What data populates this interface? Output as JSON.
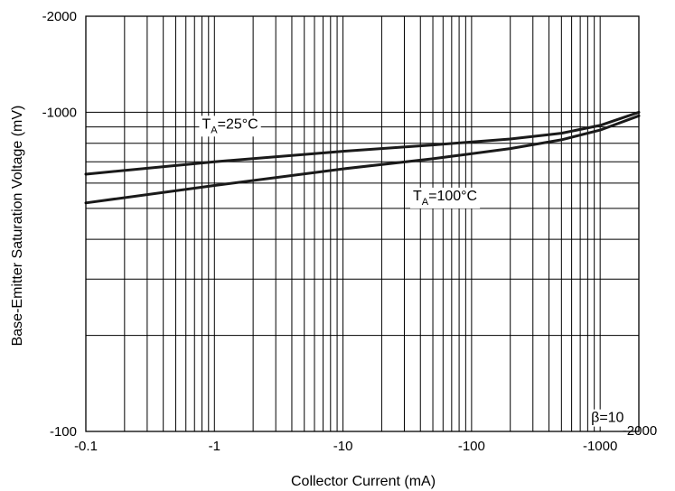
{
  "chart_data": {
    "type": "line",
    "title": "",
    "xlabel": "Collector Current (mA)",
    "ylabel": "Base-Emitter Saturation Voltage (mV)",
    "x_scale": "log",
    "y_scale": "log",
    "xlim": [
      -0.1,
      -2000
    ],
    "ylim": [
      -100,
      -2000
    ],
    "grid": true,
    "x_ticks": [
      {
        "value": -0.1,
        "label": "-0.1"
      },
      {
        "value": -1,
        "label": "-1"
      },
      {
        "value": -10,
        "label": "-10"
      },
      {
        "value": -100,
        "label": "-100"
      },
      {
        "value": -1000,
        "label": "-1000"
      },
      {
        "value": -2000,
        "label": "-2000"
      }
    ],
    "y_ticks": [
      {
        "value": -100,
        "label": "-100"
      },
      {
        "value": -1000,
        "label": "-1000"
      },
      {
        "value": -2000,
        "label": "-2000"
      }
    ],
    "series": [
      {
        "name": "TA=25°C",
        "label_main": "T",
        "label_sub": "A",
        "label_rest": "=25°C",
        "label_at": [
          -0.8,
          -890
        ],
        "color": "#1a1a1a",
        "x": [
          -0.1,
          -1,
          -10,
          -50,
          -200,
          -500,
          -1000,
          -2000
        ],
        "y": [
          -640,
          -700,
          -755,
          -790,
          -825,
          -860,
          -910,
          -1000
        ]
      },
      {
        "name": "TA=100°C",
        "label_main": "T",
        "label_sub": "A",
        "label_rest": "=100°C",
        "label_at": [
          -35,
          -530
        ],
        "color": "#1a1a1a",
        "x": [
          -0.1,
          -1,
          -10,
          -50,
          -200,
          -500,
          -1000,
          -2000
        ],
        "y": [
          -520,
          -590,
          -665,
          -715,
          -770,
          -820,
          -880,
          -975
        ]
      }
    ],
    "annotations": [
      {
        "text": "β=10",
        "at": [
          -850,
          -107
        ]
      }
    ]
  }
}
